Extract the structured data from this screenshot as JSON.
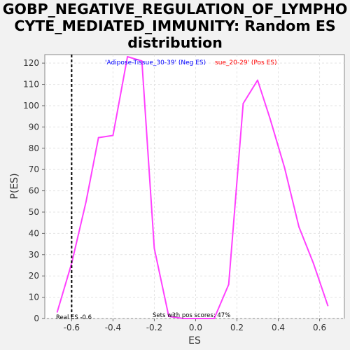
{
  "title_lines": [
    "GOBP_NEGATIVE_REGULATION_OF_LYMPHO",
    "CYTE_MEDIATED_IMMUNITY: Random ES",
    "distribution"
  ],
  "chart_data": {
    "type": "line",
    "title": "GOBP_NEGATIVE_REGULATION_OF_LYMPHOCYTE_MEDIATED_IMMUNITY: Random ES distribution",
    "xlabel": "ES",
    "ylabel": "P(ES)",
    "xlim": [
      -0.73,
      0.72
    ],
    "ylim": [
      0,
      124
    ],
    "xticks": [
      -0.6,
      -0.4,
      -0.2,
      0.0,
      0.2,
      0.4,
      0.6
    ],
    "xtick_labels": [
      "-0.6",
      "-0.4",
      "-0.2",
      "0.0",
      "0.2",
      "0.4",
      "0.6"
    ],
    "yticks": [
      0,
      10,
      20,
      30,
      40,
      50,
      60,
      70,
      80,
      90,
      100,
      110,
      120
    ],
    "grid": true,
    "series": [
      {
        "color": "#ff40ff",
        "x": [
          -0.67,
          -0.6,
          -0.53,
          -0.47,
          -0.4,
          -0.33,
          -0.26,
          -0.2,
          -0.13,
          -0.06,
          0.03,
          0.09,
          0.16,
          0.23,
          0.3,
          0.36,
          0.43,
          0.5,
          0.57,
          0.64
        ],
        "y": [
          3,
          26,
          55,
          85,
          86,
          123,
          121,
          33,
          1,
          0,
          0,
          0,
          16,
          101,
          112,
          94,
          71,
          43,
          26,
          6
        ]
      }
    ],
    "legend": [
      {
        "text": "'Adipose-Tissue_30-39' (Neg ES)",
        "color": "#0000ff"
      },
      {
        "text": "sue_20-29' (Pos ES)",
        "color": "#ff0000"
      }
    ],
    "real_es": {
      "value": -0.6,
      "label": "Real ES -0.6"
    },
    "annotation": "Sets with pos scores: 47%"
  }
}
